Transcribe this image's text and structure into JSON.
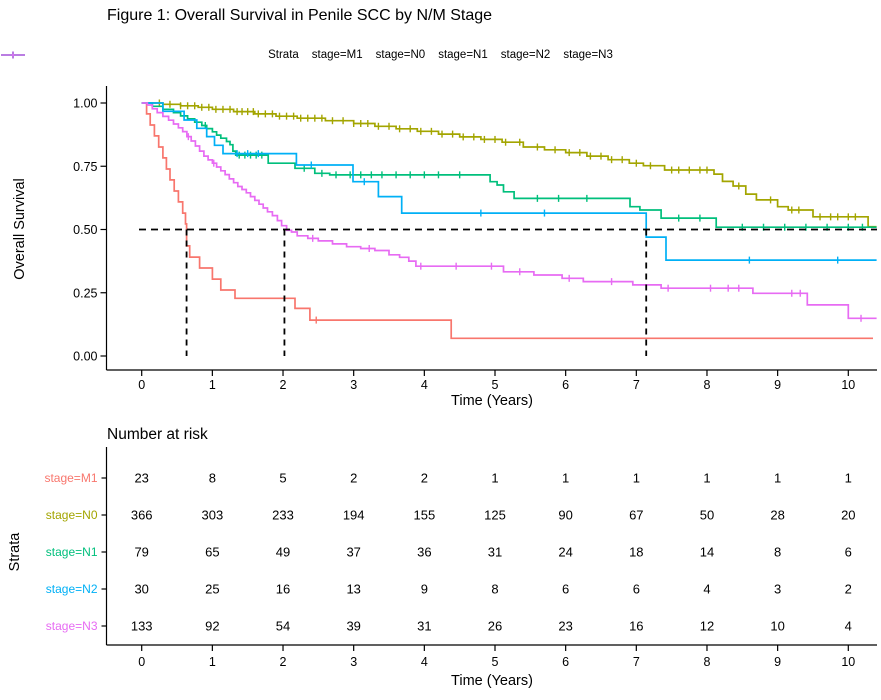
{
  "figure_title": "Figure 1: Overall Survival in Penile SCC by N/M Stage",
  "chart_data": {
    "type": "line",
    "subtype": "kaplan-meier-step",
    "title": "Figure 1: Overall Survival in Penile SCC by N/M Stage",
    "legend_title": "Strata",
    "x_axis": {
      "label": "Time (Years)",
      "ticks": [
        0,
        1,
        2,
        3,
        4,
        5,
        6,
        7,
        8,
        9,
        10
      ],
      "range": [
        -0.5,
        10.45
      ]
    },
    "y_axis": {
      "label": "Overall Survival",
      "ticks": [
        0,
        0.25,
        0.5,
        0.75,
        1.0
      ],
      "tick_labels": [
        "0.00",
        "0.25",
        "0.50",
        "0.75",
        "1.00"
      ],
      "range": [
        0,
        1.04
      ]
    },
    "grid": false,
    "legend_position": "top",
    "median_survival": {
      "line_y": 0.5,
      "times": [
        0.635,
        2.02,
        7.14
      ]
    },
    "series": [
      {
        "name": "stage=M1",
        "color": "#F8766D",
        "end": 10.35,
        "steps": [
          [
            0,
            1
          ],
          [
            0.07,
            0.957
          ],
          [
            0.12,
            0.913
          ],
          [
            0.18,
            0.87
          ],
          [
            0.24,
            0.826
          ],
          [
            0.3,
            0.783
          ],
          [
            0.35,
            0.739
          ],
          [
            0.4,
            0.696
          ],
          [
            0.46,
            0.652
          ],
          [
            0.52,
            0.609
          ],
          [
            0.58,
            0.565
          ],
          [
            0.62,
            0.522
          ],
          [
            0.635,
            0.435
          ],
          [
            0.68,
            0.391
          ],
          [
            0.82,
            0.348
          ],
          [
            1.0,
            0.304
          ],
          [
            1.12,
            0.261
          ],
          [
            1.32,
            0.228
          ],
          [
            2.17,
            0.188
          ],
          [
            2.38,
            0.142
          ],
          [
            4.38,
            0.07
          ]
        ],
        "censors": [
          2.47
        ]
      },
      {
        "name": "stage=N0",
        "color": "#A3A500",
        "end": 10.4,
        "steps": [
          [
            0,
            1
          ],
          [
            0.3,
            0.995
          ],
          [
            0.55,
            0.989
          ],
          [
            0.8,
            0.983
          ],
          [
            1.0,
            0.975
          ],
          [
            1.3,
            0.966
          ],
          [
            1.6,
            0.957
          ],
          [
            1.9,
            0.948
          ],
          [
            2.2,
            0.94
          ],
          [
            2.6,
            0.93
          ],
          [
            3.0,
            0.919
          ],
          [
            3.3,
            0.908
          ],
          [
            3.6,
            0.898
          ],
          [
            3.9,
            0.888
          ],
          [
            4.2,
            0.877
          ],
          [
            4.5,
            0.866
          ],
          [
            4.8,
            0.856
          ],
          [
            5.1,
            0.845
          ],
          [
            5.4,
            0.826
          ],
          [
            5.7,
            0.815
          ],
          [
            6.0,
            0.804
          ],
          [
            6.3,
            0.79
          ],
          [
            6.6,
            0.776
          ],
          [
            6.9,
            0.762
          ],
          [
            7.1,
            0.752
          ],
          [
            7.4,
            0.735
          ],
          [
            8.1,
            0.719
          ],
          [
            8.22,
            0.69
          ],
          [
            8.37,
            0.672
          ],
          [
            8.55,
            0.64
          ],
          [
            8.7,
            0.617
          ],
          [
            9.0,
            0.59
          ],
          [
            9.15,
            0.577
          ],
          [
            9.5,
            0.55
          ],
          [
            10.28,
            0.511
          ]
        ],
        "censors": [
          0.25,
          0.4,
          0.55,
          0.65,
          0.75,
          0.85,
          0.95,
          1.05,
          1.15,
          1.25,
          1.35,
          1.42,
          1.5,
          1.58,
          1.65,
          1.75,
          1.85,
          1.95,
          2.05,
          2.15,
          2.25,
          2.35,
          2.45,
          2.55,
          2.7,
          2.85,
          3.0,
          3.1,
          3.2,
          3.35,
          3.5,
          3.65,
          3.8,
          3.95,
          4.1,
          4.25,
          4.4,
          4.55,
          4.7,
          4.85,
          5.0,
          5.15,
          5.35,
          5.6,
          5.85,
          6.05,
          6.2,
          6.35,
          6.5,
          6.65,
          6.8,
          7.0,
          7.2,
          7.5,
          7.6,
          7.75,
          7.9,
          8.0,
          8.45,
          8.9,
          9.2,
          9.3,
          9.6,
          9.75,
          9.85,
          10.0,
          10.1
        ]
      },
      {
        "name": "stage=N1",
        "color": "#00BF7C",
        "end": 10.4,
        "steps": [
          [
            0,
            1
          ],
          [
            0.15,
            0.987
          ],
          [
            0.3,
            0.975
          ],
          [
            0.45,
            0.962
          ],
          [
            0.55,
            0.949
          ],
          [
            0.65,
            0.937
          ],
          [
            0.75,
            0.924
          ],
          [
            0.85,
            0.911
          ],
          [
            0.92,
            0.899
          ],
          [
            1.0,
            0.886
          ],
          [
            1.06,
            0.873
          ],
          [
            1.12,
            0.861
          ],
          [
            1.2,
            0.848
          ],
          [
            1.25,
            0.835
          ],
          [
            1.29,
            0.81
          ],
          [
            1.33,
            0.794
          ],
          [
            1.79,
            0.762
          ],
          [
            2.17,
            0.742
          ],
          [
            2.45,
            0.722
          ],
          [
            2.66,
            0.716
          ],
          [
            4.93,
            0.689
          ],
          [
            5.03,
            0.676
          ],
          [
            5.12,
            0.649
          ],
          [
            5.27,
            0.623
          ],
          [
            6.91,
            0.59
          ],
          [
            7.05,
            0.577
          ],
          [
            7.35,
            0.545
          ],
          [
            8.13,
            0.509
          ]
        ],
        "censors": [
          0.9,
          1.38,
          1.46,
          1.54,
          1.62,
          1.7,
          2.3,
          2.55,
          2.75,
          2.95,
          3.1,
          3.25,
          3.4,
          3.6,
          3.8,
          4.0,
          4.2,
          4.5,
          5.6,
          5.9,
          6.3,
          7.6,
          7.9,
          8.5,
          8.8,
          9.1,
          9.4,
          9.7,
          10.0,
          10.2
        ]
      },
      {
        "name": "stage=N2",
        "color": "#00B0F6",
        "end": 10.4,
        "steps": [
          [
            0,
            1
          ],
          [
            0.3,
            0.967
          ],
          [
            0.6,
            0.933
          ],
          [
            0.78,
            0.9
          ],
          [
            0.92,
            0.867
          ],
          [
            1.03,
            0.833
          ],
          [
            1.15,
            0.8
          ],
          [
            2.19,
            0.755
          ],
          [
            2.99,
            0.689
          ],
          [
            3.35,
            0.63
          ],
          [
            3.68,
            0.565
          ],
          [
            7.14,
            0.47
          ],
          [
            7.42,
            0.379
          ]
        ],
        "censors": [
          1.35,
          1.5,
          1.65,
          2.4,
          3.15,
          4.8,
          5.7,
          8.6,
          9.85
        ]
      },
      {
        "name": "stage=N3",
        "color": "#E76BF3",
        "end": 10.4,
        "steps": [
          [
            0,
            1
          ],
          [
            0.08,
            0.992
          ],
          [
            0.15,
            0.977
          ],
          [
            0.22,
            0.962
          ],
          [
            0.3,
            0.947
          ],
          [
            0.38,
            0.932
          ],
          [
            0.45,
            0.917
          ],
          [
            0.52,
            0.902
          ],
          [
            0.58,
            0.887
          ],
          [
            0.64,
            0.867
          ],
          [
            0.7,
            0.85
          ],
          [
            0.76,
            0.83
          ],
          [
            0.82,
            0.81
          ],
          [
            0.88,
            0.79
          ],
          [
            0.94,
            0.775
          ],
          [
            1.0,
            0.762
          ],
          [
            1.06,
            0.747
          ],
          [
            1.12,
            0.732
          ],
          [
            1.18,
            0.717
          ],
          [
            1.24,
            0.7
          ],
          [
            1.3,
            0.685
          ],
          [
            1.36,
            0.67
          ],
          [
            1.42,
            0.658
          ],
          [
            1.48,
            0.645
          ],
          [
            1.54,
            0.63
          ],
          [
            1.6,
            0.615
          ],
          [
            1.66,
            0.6
          ],
          [
            1.72,
            0.585
          ],
          [
            1.78,
            0.57
          ],
          [
            1.85,
            0.555
          ],
          [
            1.92,
            0.535
          ],
          [
            1.98,
            0.515
          ],
          [
            2.05,
            0.497
          ],
          [
            2.12,
            0.49
          ],
          [
            2.2,
            0.475
          ],
          [
            2.35,
            0.465
          ],
          [
            2.5,
            0.455
          ],
          [
            2.7,
            0.443
          ],
          [
            2.9,
            0.432
          ],
          [
            3.1,
            0.425
          ],
          [
            3.3,
            0.417
          ],
          [
            3.5,
            0.4
          ],
          [
            3.65,
            0.39
          ],
          [
            3.78,
            0.375
          ],
          [
            3.88,
            0.355
          ],
          [
            5.12,
            0.333
          ],
          [
            5.55,
            0.32
          ],
          [
            5.95,
            0.307
          ],
          [
            6.25,
            0.294
          ],
          [
            6.95,
            0.281
          ],
          [
            7.35,
            0.268
          ],
          [
            8.65,
            0.248
          ],
          [
            9.42,
            0.202
          ],
          [
            10.0,
            0.149
          ]
        ],
        "censors": [
          0.66,
          1.02,
          2.42,
          3.22,
          3.95,
          4.45,
          4.95,
          5.35,
          6.05,
          6.65,
          7.45,
          8.05,
          8.3,
          8.45,
          9.2,
          9.32,
          10.18
        ]
      }
    ],
    "risk_table": {
      "title": "Number at risk",
      "ylabel": "Strata",
      "xlabel": "Time (Years)",
      "times": [
        0,
        1,
        2,
        3,
        4,
        5,
        6,
        7,
        8,
        9,
        10
      ],
      "rows": [
        {
          "name": "stage=M1",
          "color": "#F8766D",
          "counts": [
            23,
            8,
            5,
            2,
            2,
            1,
            1,
            1,
            1,
            1,
            1
          ]
        },
        {
          "name": "stage=N0",
          "color": "#A3A500",
          "counts": [
            366,
            303,
            233,
            194,
            155,
            125,
            90,
            67,
            50,
            28,
            20
          ]
        },
        {
          "name": "stage=N1",
          "color": "#00BF7C",
          "counts": [
            79,
            65,
            49,
            37,
            36,
            31,
            24,
            18,
            14,
            8,
            6
          ]
        },
        {
          "name": "stage=N2",
          "color": "#00B0F6",
          "counts": [
            30,
            25,
            16,
            13,
            9,
            8,
            6,
            6,
            4,
            3,
            2
          ]
        },
        {
          "name": "stage=N3",
          "color": "#E76BF3",
          "counts": [
            133,
            92,
            54,
            39,
            31,
            26,
            23,
            16,
            12,
            10,
            4
          ]
        }
      ]
    }
  }
}
